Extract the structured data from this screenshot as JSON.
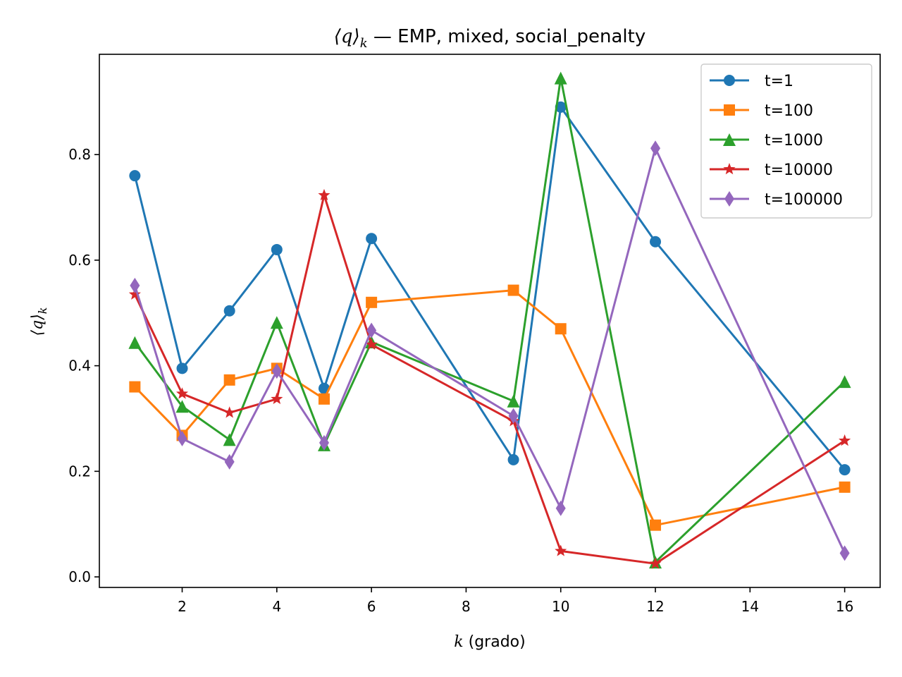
{
  "chart_data": {
    "type": "line",
    "title": "⟨q⟩ₖ — EMP, mixed, social_penalty",
    "title_parts": {
      "math": "⟨q⟩",
      "sub": "k",
      "rest": " — EMP, mixed, social_penalty"
    },
    "xlabel": "k (grado)",
    "xlabel_parts": {
      "var": "k",
      "rest": " (grado)"
    },
    "ylabel": "⟨q⟩k",
    "ylabel_parts": {
      "math": "⟨q⟩",
      "sub": "k"
    },
    "xlim": [
      0.25,
      16.75
    ],
    "ylim": [
      -0.02,
      0.99
    ],
    "xticks": [
      2,
      4,
      6,
      8,
      10,
      12,
      14,
      16
    ],
    "yticks": [
      0.0,
      0.2,
      0.4,
      0.6,
      0.8
    ],
    "xtick_labels": [
      "2",
      "4",
      "6",
      "8",
      "10",
      "12",
      "14",
      "16"
    ],
    "ytick_labels": [
      "0.0",
      "0.2",
      "0.4",
      "0.6",
      "0.8"
    ],
    "grid": false,
    "legend_position": "top-right",
    "x": [
      1,
      2,
      3,
      4,
      5,
      6,
      9,
      10,
      12,
      16
    ],
    "series": [
      {
        "name": "t=1",
        "color": "#1f77b4",
        "marker": "circle",
        "values": [
          0.76,
          0.395,
          0.504,
          0.62,
          0.357,
          0.641,
          0.222,
          0.89,
          0.635,
          0.203
        ]
      },
      {
        "name": "t=100",
        "color": "#ff7f0e",
        "marker": "square",
        "values": [
          0.36,
          0.268,
          0.373,
          0.395,
          0.337,
          0.52,
          0.543,
          0.47,
          0.098,
          0.17
        ]
      },
      {
        "name": "t=1000",
        "color": "#2ca02c",
        "marker": "triangle",
        "values": [
          0.444,
          0.323,
          0.26,
          0.482,
          0.25,
          0.445,
          0.333,
          0.945,
          0.028,
          0.37
        ]
      },
      {
        "name": "t=10000",
        "color": "#d62728",
        "marker": "star",
        "values": [
          0.535,
          0.347,
          0.311,
          0.337,
          0.723,
          0.44,
          0.295,
          0.049,
          0.025,
          0.258
        ]
      },
      {
        "name": "t=100000",
        "color": "#9467bd",
        "marker": "diamond",
        "values": [
          0.552,
          0.262,
          0.218,
          0.39,
          0.254,
          0.467,
          0.305,
          0.13,
          0.812,
          0.045
        ]
      }
    ]
  }
}
